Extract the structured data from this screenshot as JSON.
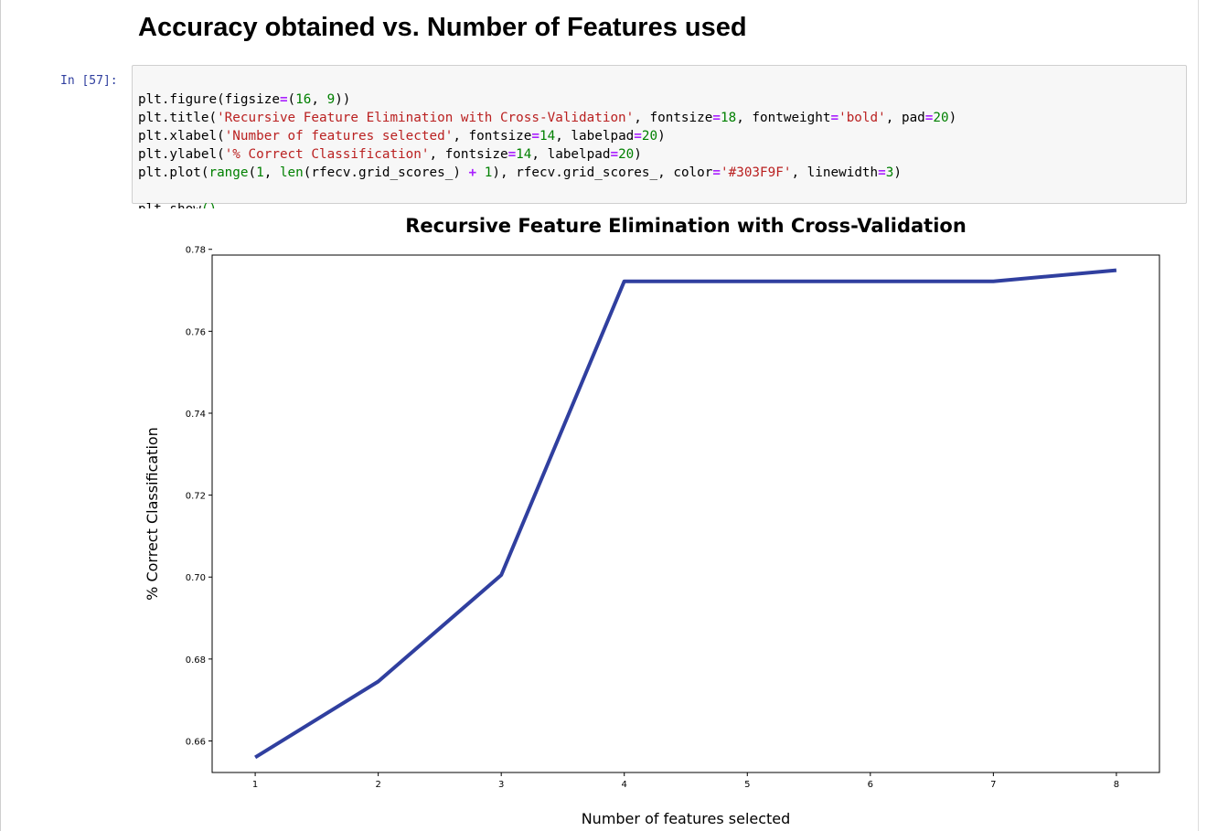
{
  "notebook": {
    "heading": "Accuracy obtained vs. Number of Features used"
  },
  "cell": {
    "prompt": "In [57]:",
    "code_lines": [
      [
        {
          "t": "plt.figure(figsize"
        },
        {
          "t": "=",
          "c": "o"
        },
        {
          "t": "("
        },
        {
          "t": "16",
          "c": "n"
        },
        {
          "t": ", "
        },
        {
          "t": "9",
          "c": "n"
        },
        {
          "t": "))"
        }
      ],
      [
        {
          "t": "plt.title("
        },
        {
          "t": "'Recursive Feature Elimination with Cross-Validation'",
          "c": "s"
        },
        {
          "t": ", fontsize"
        },
        {
          "t": "=",
          "c": "o"
        },
        {
          "t": "18",
          "c": "n"
        },
        {
          "t": ", fontweight"
        },
        {
          "t": "=",
          "c": "o"
        },
        {
          "t": "'bold'",
          "c": "s"
        },
        {
          "t": ", pad"
        },
        {
          "t": "=",
          "c": "o"
        },
        {
          "t": "20",
          "c": "n"
        },
        {
          "t": ")"
        }
      ],
      [
        {
          "t": "plt.xlabel("
        },
        {
          "t": "'Number of features selected'",
          "c": "s"
        },
        {
          "t": ", fontsize"
        },
        {
          "t": "=",
          "c": "o"
        },
        {
          "t": "14",
          "c": "n"
        },
        {
          "t": ", labelpad"
        },
        {
          "t": "=",
          "c": "o"
        },
        {
          "t": "20",
          "c": "n"
        },
        {
          "t": ")"
        }
      ],
      [
        {
          "t": "plt.ylabel("
        },
        {
          "t": "'% Correct Classification'",
          "c": "s"
        },
        {
          "t": ", fontsize"
        },
        {
          "t": "=",
          "c": "o"
        },
        {
          "t": "14",
          "c": "n"
        },
        {
          "t": ", labelpad"
        },
        {
          "t": "=",
          "c": "o"
        },
        {
          "t": "20",
          "c": "n"
        },
        {
          "t": ")"
        }
      ],
      [
        {
          "t": "plt.plot("
        },
        {
          "t": "range",
          "c": "b"
        },
        {
          "t": "("
        },
        {
          "t": "1",
          "c": "n"
        },
        {
          "t": ", "
        },
        {
          "t": "len",
          "c": "b"
        },
        {
          "t": "(rfecv.grid_scores_) "
        },
        {
          "t": "+",
          "c": "o"
        },
        {
          "t": " "
        },
        {
          "t": "1",
          "c": "n"
        },
        {
          "t": "), rfecv.grid_scores_, color"
        },
        {
          "t": "=",
          "c": "o"
        },
        {
          "t": "'#303F9F'",
          "c": "s"
        },
        {
          "t": ", linewidth"
        },
        {
          "t": "=",
          "c": "o"
        },
        {
          "t": "3",
          "c": "n"
        },
        {
          "t": ")"
        }
      ],
      [],
      [
        {
          "t": "plt.show"
        },
        {
          "t": "()",
          "c": "n"
        }
      ]
    ]
  },
  "chart_data": {
    "type": "line",
    "title": "Recursive Feature Elimination with Cross-Validation",
    "xlabel": "Number of features selected",
    "ylabel": "% Correct Classification",
    "x": [
      1,
      2,
      3,
      4,
      5,
      6,
      7,
      8
    ],
    "series": [
      {
        "values": [
          0.656,
          0.6745,
          0.7005,
          0.7722,
          0.7722,
          0.7722,
          0.7722,
          0.7749
        ],
        "color": "#303F9F"
      }
    ],
    "xticks": [
      1,
      2,
      3,
      4,
      5,
      6,
      7,
      8
    ],
    "yticks": [
      0.66,
      0.68,
      0.7,
      0.72,
      0.74,
      0.76,
      0.78
    ],
    "ytick_labels": [
      "0.66",
      "0.68",
      "0.70",
      "0.72",
      "0.74",
      "0.76",
      "0.78"
    ],
    "xlim": [
      0.65,
      8.35
    ],
    "ylim": [
      0.6523,
      0.7786
    ],
    "grid": false,
    "legend": "none"
  }
}
